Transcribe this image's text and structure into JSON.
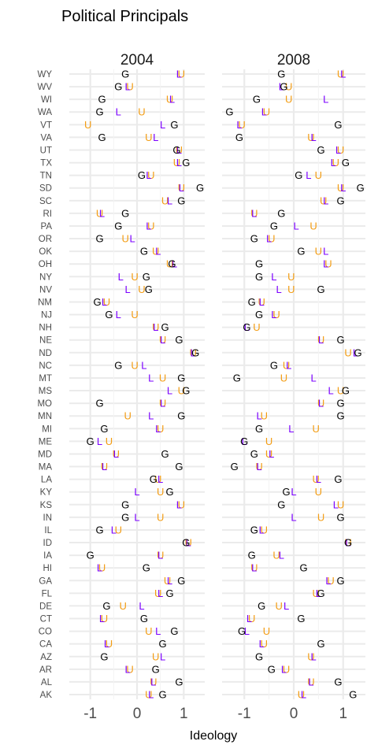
{
  "chart_data": {
    "type": "scatter",
    "title": "Political Principals",
    "xlabel": "Ideology",
    "ylabel": "",
    "xlim": [
      -1.45,
      1.45
    ],
    "xticks": [
      -1,
      0,
      1
    ],
    "xtick_labels": [
      "-1",
      "0",
      "1"
    ],
    "grid": true,
    "colors": {
      "G": "#000000",
      "U": "#f39c12",
      "L": "#7b00ff"
    },
    "marker_labels": {
      "G": "G",
      "U": "U",
      "L": "L"
    },
    "states": [
      "WY",
      "WV",
      "WI",
      "WA",
      "VT",
      "VA",
      "UT",
      "TX",
      "TN",
      "SD",
      "SC",
      "RI",
      "PA",
      "OR",
      "OK",
      "OH",
      "NY",
      "NV",
      "NM",
      "NJ",
      "NH",
      "NE",
      "ND",
      "NC",
      "MT",
      "MS",
      "MO",
      "MN",
      "MI",
      "ME",
      "MD",
      "MA",
      "LA",
      "KY",
      "KS",
      "IN",
      "IL",
      "ID",
      "IA",
      "HI",
      "GA",
      "FL",
      "DE",
      "CT",
      "CO",
      "CA",
      "AZ",
      "AR",
      "AL",
      "AK"
    ],
    "panels": [
      {
        "label": "2004",
        "series": [
          {
            "name": "G",
            "values": [
              -0.25,
              -0.4,
              -0.75,
              -0.8,
              0.8,
              -0.75,
              0.85,
              1.05,
              0.1,
              1.35,
              0.95,
              -0.25,
              -0.4,
              -0.8,
              0.15,
              0.75,
              0.2,
              0.25,
              -0.85,
              -0.6,
              0.6,
              0.9,
              1.25,
              -0.4,
              0.95,
              1.05,
              -0.8,
              0.95,
              -0.7,
              -1.0,
              0.6,
              0.9,
              0.35,
              0.7,
              -0.25,
              -0.25,
              -0.8,
              1.05,
              -1.0,
              0.2,
              0.95,
              0.7,
              -0.65,
              0.15,
              0.8,
              0.55,
              -0.7,
              0.4,
              0.9,
              0.55
            ]
          },
          {
            "name": "U",
            "values": [
              0.95,
              -0.15,
              0.7,
              0.1,
              -1.05,
              0.25,
              0.9,
              0.85,
              0.3,
              0.95,
              0.6,
              -0.8,
              0.3,
              -0.25,
              0.4,
              0.7,
              -0.05,
              0.1,
              -0.65,
              -0.05,
              0.4,
              0.55,
              1.2,
              -0.05,
              0.55,
              0.95,
              0.55,
              -0.2,
              0.5,
              -0.6,
              -0.45,
              -0.7,
              0.45,
              0.5,
              0.95,
              0.5,
              -0.4,
              1.1,
              0.5,
              -0.75,
              0.65,
              0.45,
              -0.3,
              -0.7,
              0.25,
              -0.6,
              0.4,
              -0.15,
              0.35,
              0.25
            ]
          },
          {
            "name": "L",
            "values": [
              0.9,
              -0.2,
              0.75,
              -0.4,
              0.55,
              0.4,
              0.9,
              0.9,
              0.25,
              0.95,
              0.7,
              -0.75,
              0.25,
              -0.1,
              0.45,
              0.8,
              -0.35,
              -0.2,
              -0.7,
              -0.4,
              0.4,
              0.55,
              1.2,
              0.15,
              0.3,
              0.7,
              0.55,
              0.3,
              0.45,
              -0.8,
              -0.45,
              -0.7,
              0.5,
              0.0,
              0.9,
              0.0,
              -0.5,
              1.1,
              0.5,
              -0.8,
              0.7,
              0.5,
              0.1,
              -0.75,
              0.45,
              -0.65,
              0.55,
              -0.2,
              0.35,
              0.3
            ]
          }
        ]
      },
      {
        "label": "2008",
        "series": [
          {
            "name": "G",
            "values": [
              -0.25,
              -0.2,
              -0.75,
              -1.3,
              0.9,
              -1.1,
              0.55,
              1.05,
              0.1,
              1.35,
              0.95,
              -0.25,
              -0.4,
              -0.8,
              0.15,
              -0.7,
              -0.7,
              0.55,
              -0.85,
              -0.7,
              -0.95,
              0.95,
              1.3,
              -0.4,
              -1.15,
              1.05,
              0.95,
              0.95,
              -0.7,
              -1.0,
              -0.8,
              -1.2,
              0.9,
              -0.15,
              -0.25,
              0.95,
              -0.8,
              1.1,
              -0.85,
              0.2,
              0.95,
              0.55,
              -0.65,
              0.15,
              -1.05,
              0.55,
              -0.7,
              -0.45,
              0.9,
              1.2
            ]
          },
          {
            "name": "U",
            "values": [
              0.95,
              -0.1,
              -0.1,
              -0.55,
              -1.05,
              0.35,
              0.95,
              0.85,
              0.5,
              0.95,
              0.6,
              -0.8,
              0.4,
              -0.45,
              0.5,
              0.7,
              -0.05,
              -0.05,
              -0.65,
              -0.35,
              -0.75,
              0.55,
              1.1,
              -0.15,
              -0.2,
              0.95,
              0.55,
              -0.6,
              0.45,
              -0.5,
              -0.5,
              -0.7,
              0.45,
              0.5,
              0.95,
              0.55,
              -0.6,
              1.1,
              -0.35,
              -0.8,
              0.75,
              0.45,
              -0.3,
              -0.85,
              -0.55,
              -0.6,
              0.35,
              -0.15,
              0.35,
              0.15
            ]
          },
          {
            "name": "L",
            "values": [
              1.0,
              -0.25,
              0.65,
              -0.6,
              -1.1,
              0.4,
              0.9,
              0.8,
              0.3,
              1.0,
              0.65,
              -0.8,
              0.05,
              -0.5,
              0.65,
              0.65,
              -0.4,
              -0.3,
              -0.65,
              -0.4,
              -0.95,
              0.55,
              1.25,
              -0.1,
              0.4,
              0.75,
              0.55,
              -0.7,
              -0.05,
              -1.0,
              -0.45,
              -0.7,
              0.5,
              0.0,
              0.85,
              0.0,
              -0.65,
              1.1,
              -0.25,
              -0.8,
              0.7,
              0.5,
              -0.15,
              -0.9,
              -0.95,
              -0.65,
              0.4,
              -0.2,
              0.35,
              0.2
            ]
          }
        ]
      }
    ]
  }
}
